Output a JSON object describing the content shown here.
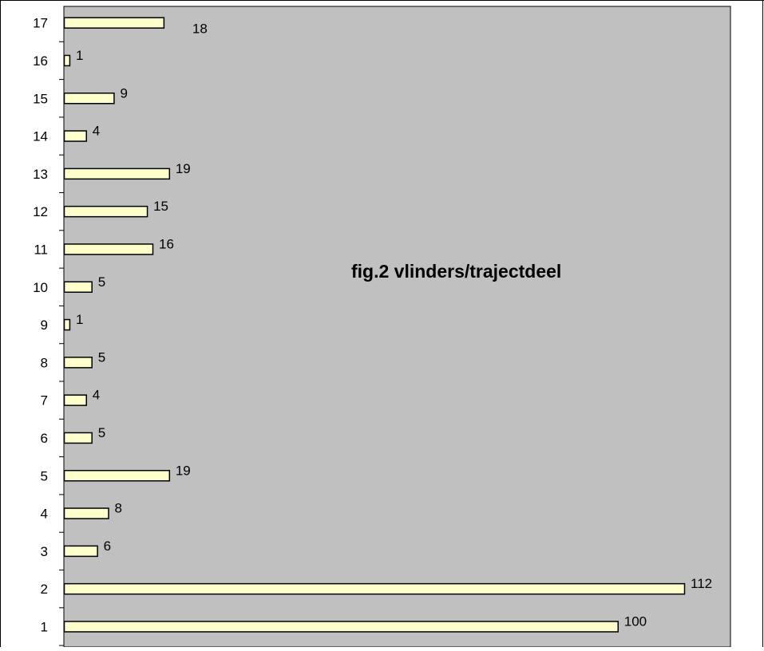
{
  "chart_data": {
    "type": "bar",
    "orientation": "horizontal",
    "title": "fig.2  vlinders/trajectdeel",
    "categories": [
      "1",
      "2",
      "3",
      "4",
      "5",
      "6",
      "7",
      "8",
      "9",
      "10",
      "11",
      "12",
      "13",
      "14",
      "15",
      "16",
      "17"
    ],
    "values": [
      100,
      112,
      6,
      8,
      19,
      5,
      4,
      5,
      1,
      5,
      16,
      15,
      19,
      4,
      9,
      1,
      18
    ],
    "xlabel": "",
    "ylabel": "",
    "xlim": [
      0,
      120
    ],
    "grid": false,
    "legend": "none",
    "colors": {
      "plot_background": "#c0c0c0",
      "bar_fill": "#ffffcc",
      "bar_stroke": "#000000",
      "frame": "#000000"
    }
  }
}
